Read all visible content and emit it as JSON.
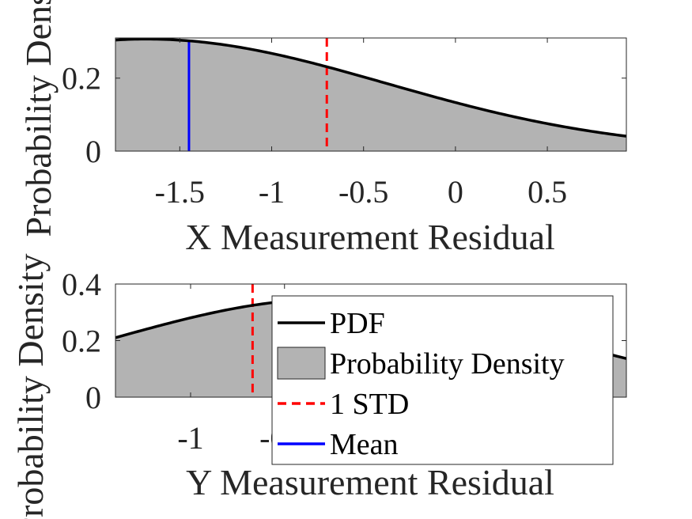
{
  "chart_data": [
    {
      "type": "area",
      "xlabel": "X Measurement Residual",
      "ylabel": "Probability Density",
      "xlim": [
        -1.85,
        0.93
      ],
      "ylim": [
        0,
        0.31
      ],
      "xticks": [
        -1.5,
        -1,
        -0.5,
        0,
        0.5
      ],
      "xtick_labels": [
        "-1.5",
        "-1",
        "-0.5",
        "0",
        "0.5"
      ],
      "yticks": [
        0,
        0.2
      ],
      "ytick_labels": [
        "0",
        "0.2"
      ],
      "pdf": {
        "mu": -1.68,
        "sigma": 1.3,
        "peak": 0.307
      },
      "pdf_points": {
        "x": [
          -1.85,
          -1.68,
          -1.45,
          -1.0,
          -0.7,
          -0.5,
          0.0,
          0.5,
          0.93
        ],
        "y": [
          0.306,
          0.307,
          0.302,
          0.268,
          0.236,
          0.213,
          0.151,
          0.097,
          0.061
        ]
      },
      "mean": -1.45,
      "one_std": -0.7,
      "series": [
        {
          "name": "PDF",
          "color": "#000000"
        },
        {
          "name": "Probability Density",
          "color": "#b3b3b3"
        },
        {
          "name": "1 STD",
          "color": "#ff0000"
        },
        {
          "name": "Mean",
          "color": "#0000ff"
        }
      ],
      "grid": false
    },
    {
      "type": "area",
      "xlabel": "Y Measurement Residual",
      "ylabel": "Probability Density",
      "xlim": [
        -1.4,
        1.32
      ],
      "ylim": [
        0,
        0.4
      ],
      "xticks": [
        -1,
        -0.5
      ],
      "xtick_labels": [
        "-1",
        "-0.5"
      ],
      "yticks": [
        0,
        0.2,
        0.4
      ],
      "ytick_labels": [
        "0",
        "0.2",
        "0.4"
      ],
      "pdf": {
        "mu": -0.25,
        "sigma": 1.15,
        "peak": 0.347
      },
      "pdf_points": {
        "x": [
          -1.4,
          -1.0,
          -0.67,
          -0.25,
          0.5,
          1.32
        ],
        "y": [
          0.23,
          0.28,
          0.324,
          0.347,
          0.28,
          0.12
        ]
      },
      "one_std": -0.67,
      "legend": {
        "position": "south-east",
        "entries": [
          {
            "label": "PDF",
            "kind": "line",
            "color": "#000000",
            "dash": "solid"
          },
          {
            "label": "Probability Density",
            "kind": "patch",
            "color": "#b3b3b3"
          },
          {
            "label": "1 STD",
            "kind": "line",
            "color": "#ff0000",
            "dash": "dashed"
          },
          {
            "label": "Mean",
            "kind": "line",
            "color": "#0000ff",
            "dash": "solid"
          }
        ]
      },
      "grid": false
    }
  ]
}
